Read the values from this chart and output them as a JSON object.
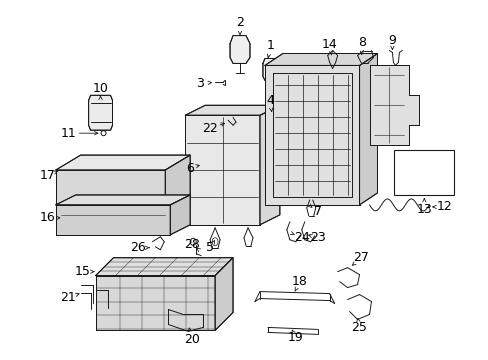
{
  "background_color": "#ffffff",
  "line_color": "#1a1a1a",
  "label_color": "#000000",
  "fig_width": 4.89,
  "fig_height": 3.6,
  "dpi": 100,
  "label_fontsize": 8.5,
  "lw": 0.7
}
